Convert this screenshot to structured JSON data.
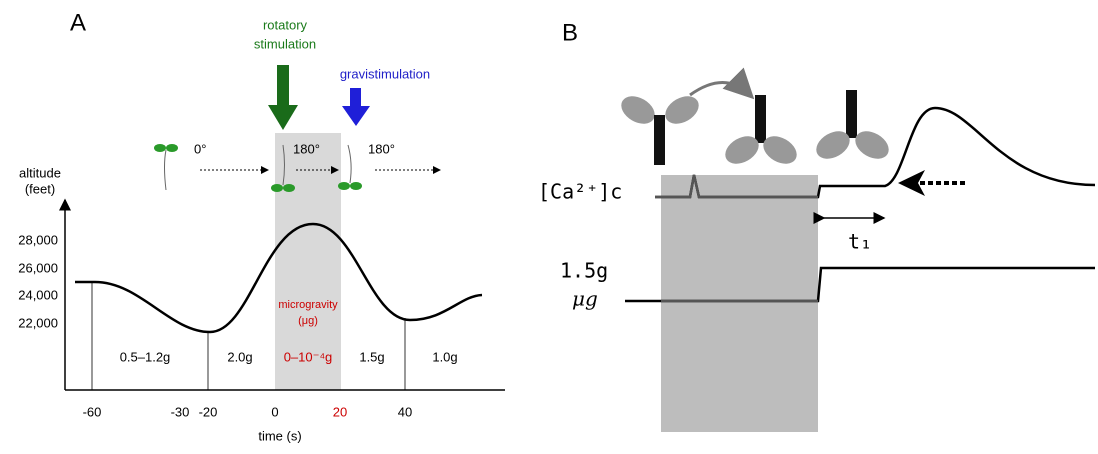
{
  "panel_a": {
    "label": "A",
    "y_axis_label": [
      "altitude",
      "(feet)"
    ],
    "yticks": [
      "28,000",
      "26,000",
      "24,000",
      "22,000"
    ],
    "xticks": [
      "-60",
      "-30",
      "-20",
      "0",
      "20",
      "40"
    ],
    "x_axis_label": "time (s)",
    "phases": [
      "0.5–1.2g",
      "2.0g",
      "0–10⁻⁴g",
      "1.5g",
      "1.0g"
    ],
    "microgravity": [
      "microgravity",
      "(μg)"
    ],
    "rotatory_stimulation": [
      "rotatory",
      "stimulation"
    ],
    "gravistimulation": "gravistimulation",
    "angles": [
      "0°",
      "180°",
      "180°"
    ]
  },
  "panel_b": {
    "label": "B",
    "calcium_label": "[Ca²⁺]c",
    "upper_g": "1.5g",
    "lower_g": "μg",
    "delay_label": "t₁"
  }
}
